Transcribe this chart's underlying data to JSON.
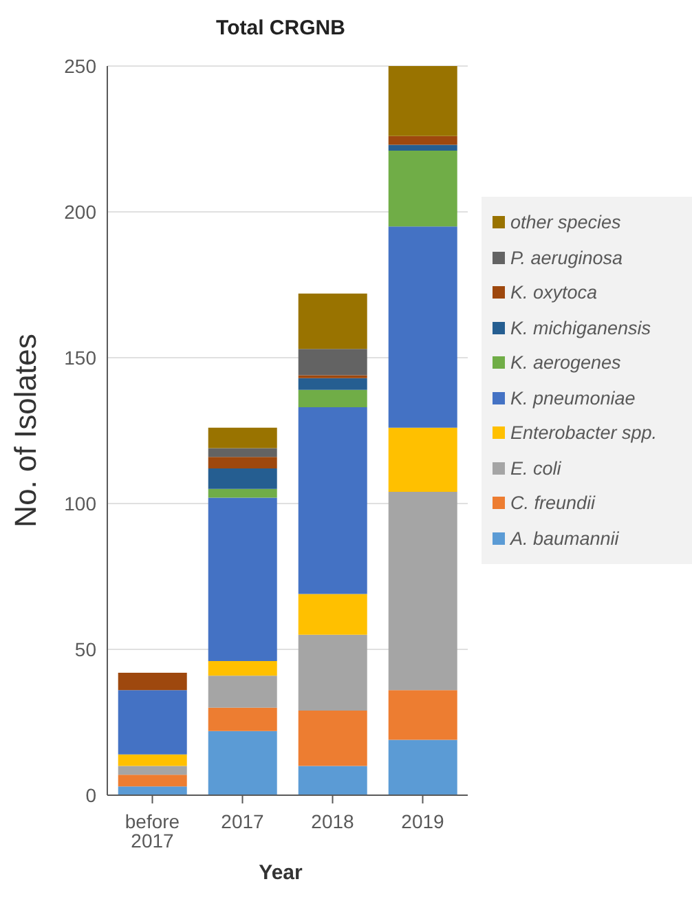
{
  "chart_data": {
    "type": "bar",
    "title": "Total CRGNB",
    "xlabel": "Year",
    "ylabel": "No. of Isolates",
    "categories": [
      "before 2017",
      "2017",
      "2018",
      "2019"
    ],
    "stacked": true,
    "ylim": [
      0,
      250
    ],
    "yticks": [
      0,
      50,
      100,
      150,
      200,
      250
    ],
    "grid": "y",
    "legend": "right",
    "series": [
      {
        "name": "A. baumannii",
        "color": "#5b9bd5",
        "values": [
          3,
          22,
          10,
          19
        ]
      },
      {
        "name": "C. freundii",
        "color": "#ed7d31",
        "values": [
          4,
          8,
          19,
          17
        ]
      },
      {
        "name": "E. coli",
        "color": "#a5a5a5",
        "values": [
          3,
          11,
          26,
          68
        ]
      },
      {
        "name": "Enterobacter spp.",
        "color": "#ffc000",
        "values": [
          4,
          5,
          14,
          22
        ]
      },
      {
        "name": "K. pneumoniae",
        "color": "#4472c4",
        "values": [
          22,
          56,
          64,
          69
        ]
      },
      {
        "name": "K. aerogenes",
        "color": "#70ad47",
        "values": [
          0,
          3,
          6,
          26
        ]
      },
      {
        "name": "K. michiganensis",
        "color": "#255e91",
        "values": [
          0,
          7,
          4,
          2
        ]
      },
      {
        "name": "K. oxytoca",
        "color": "#9e480e",
        "values": [
          6,
          4,
          1,
          3
        ]
      },
      {
        "name": "P. aeruginosa",
        "color": "#636363",
        "values": [
          0,
          3,
          9,
          0
        ]
      },
      {
        "name": "other species",
        "color": "#997300",
        "values": [
          0,
          7,
          19,
          24
        ]
      }
    ]
  }
}
